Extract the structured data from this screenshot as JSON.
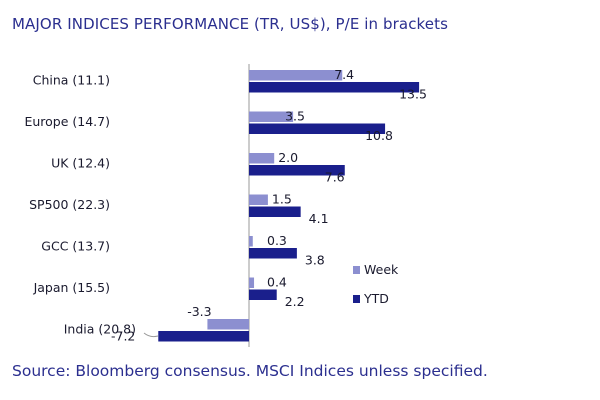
{
  "chart_title": "MAJOR INDICES PERFORMANCE (TR, US$), P/E in brackets",
  "chart_source": "Source: Bloomberg consensus. MSCI Indices unless specified.",
  "colors": {
    "week": "#8c8fd0",
    "ytd": "#1a1f8c",
    "axis": "#9a9a9a",
    "text": "#2b2f8f"
  },
  "chart_data": {
    "type": "bar",
    "orientation": "horizontal",
    "title": "MAJOR INDICES PERFORMANCE (TR, US$), P/E in brackets",
    "categories": [
      "China (11.1)",
      "Europe (14.7)",
      "UK (12.4)",
      "SP500 (22.3)",
      "GCC (13.7)",
      "Japan (15.5)",
      "India (20.8)"
    ],
    "series": [
      {
        "name": "Week",
        "values": [
          7.4,
          3.5,
          2.0,
          1.5,
          0.3,
          0.4,
          -3.3
        ]
      },
      {
        "name": "YTD",
        "values": [
          13.5,
          10.8,
          7.6,
          4.1,
          3.8,
          2.2,
          -7.2
        ]
      }
    ],
    "value_labels": {
      "Week": [
        "7.4",
        "3.5",
        "2.0",
        "1.5",
        "0.3",
        "0.4",
        "-3.3"
      ],
      "YTD": [
        "13.5",
        "10.8",
        "7.6",
        "4.1",
        "3.8",
        "2.2",
        "-7.2"
      ]
    },
    "legend": "right",
    "grid": false
  }
}
